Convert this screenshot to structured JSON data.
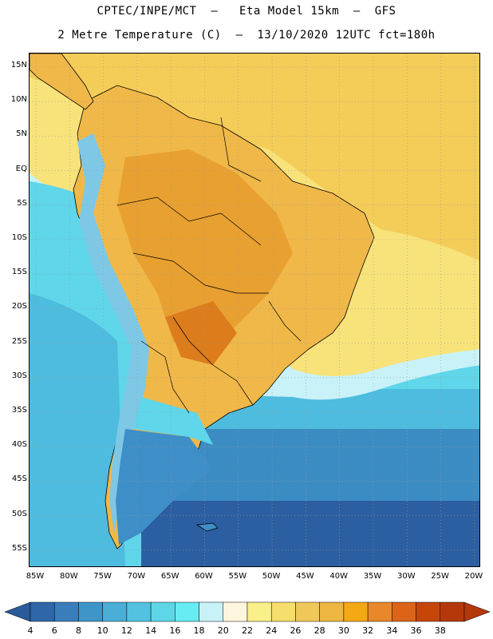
{
  "title_line1": "CPTEC/INPE/MCT  –   Eta Model 15km  –  GFS",
  "title_line2": "2 Metre Temperature (C)  –  13/10/2020 12UTC fct=180h",
  "lat_labels": [
    "15N",
    "10N",
    "5N",
    "EQ",
    "5S",
    "10S",
    "15S",
    "20S",
    "25S",
    "30S",
    "35S",
    "40S",
    "45S",
    "50S",
    "55S"
  ],
  "lon_labels": [
    "85W",
    "80W",
    "75W",
    "70W",
    "65W",
    "60W",
    "55W",
    "50W",
    "45W",
    "40W",
    "35W",
    "30W",
    "25W",
    "20W"
  ],
  "colorbar": {
    "labels": [
      "4",
      "6",
      "8",
      "10",
      "12",
      "14",
      "16",
      "18",
      "20",
      "22",
      "24",
      "26",
      "28",
      "30",
      "32",
      "34",
      "36",
      "38"
    ],
    "colors": [
      "#2f66a8",
      "#3a7dba",
      "#3f95c8",
      "#4aaed6",
      "#52c2e0",
      "#5dd6e8",
      "#66ecf2",
      "#c8f2f8",
      "#fcf6df",
      "#f9f08a",
      "#f6de6c",
      "#f0c85a",
      "#ecb640",
      "#f4a814",
      "#e8882a",
      "#dc6418",
      "#c64608",
      "#b4380a"
    ],
    "low_color": "#2a5a9a",
    "high_color": "#b4380a"
  },
  "map_colors": {
    "ocean_deep": "#2c5fa2",
    "ocean_cold": "#3c8cc4",
    "ocean_cool": "#4ebcde",
    "ocean_mild": "#5fd6ea",
    "ocean_warm": "#f8e27a",
    "ocean_hot": "#f4cc58",
    "land_hot": "#e8a030",
    "land_warm": "#f0b848",
    "andes": "#7ec8e6",
    "patagonia": "#3e8ec8",
    "border": "#000000"
  }
}
